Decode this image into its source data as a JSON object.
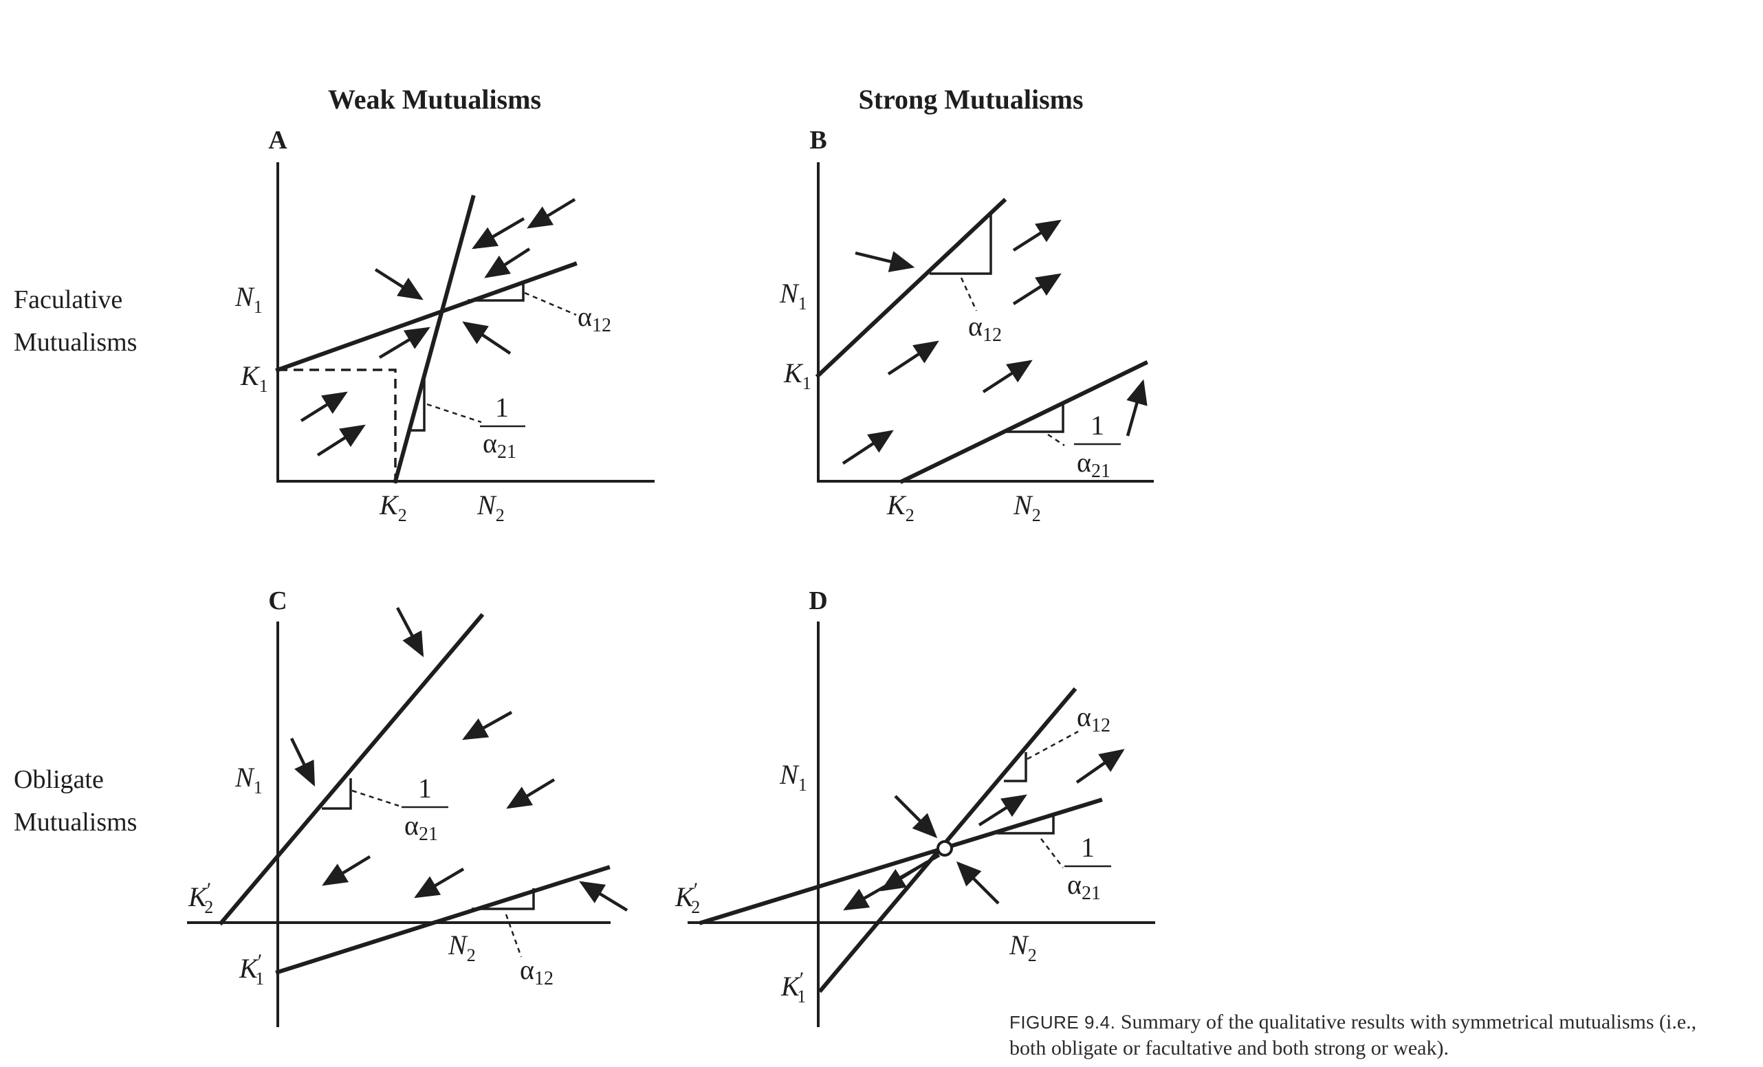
{
  "headers": {
    "weak": "Weak Mutualisms",
    "strong": "Strong Mutualisms"
  },
  "rows": {
    "faculative": [
      "Faculative",
      "Mutualisms"
    ],
    "obligate": [
      "Obligate",
      "Mutualisms"
    ]
  },
  "panels": [
    "A",
    "B",
    "C",
    "D"
  ],
  "axis_labels": {
    "n1": "N",
    "n2": "N",
    "k1": "K",
    "k2": "K",
    "sub1": "1",
    "sub2": "2",
    "prime": "′"
  },
  "slope_labels": {
    "alpha": "α",
    "sub12": "12",
    "sub21": "21",
    "one": "1"
  },
  "caption": {
    "label": "FIGURE 9.4.",
    "line1": "Summary of the qualitative results with symmetrical mutualisms (i.e.,",
    "line2": "both obligate or facultative and both strong or weak)."
  }
}
